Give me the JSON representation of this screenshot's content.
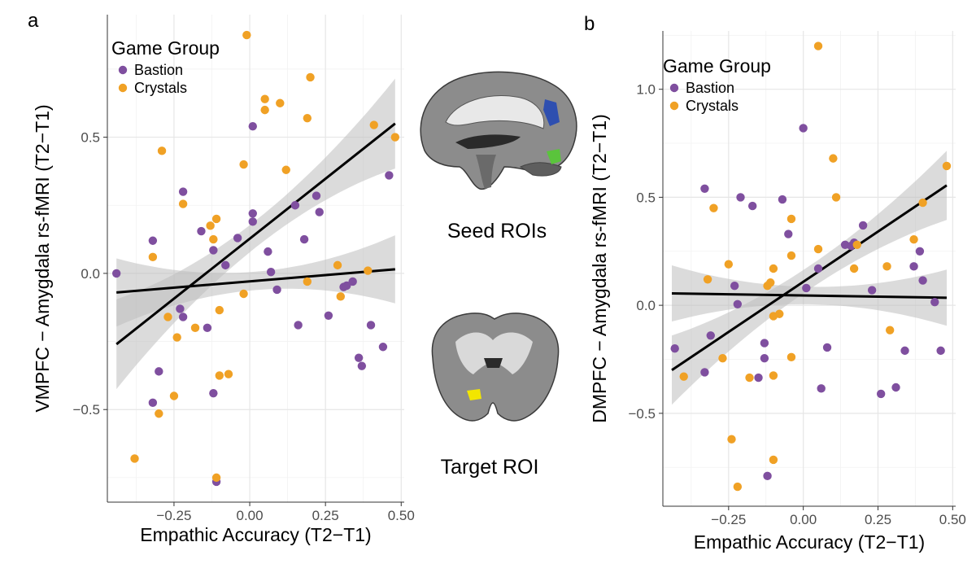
{
  "panels": [
    {
      "letter": "a",
      "chart_data": {
        "type": "scatter",
        "xlabel": "Empathic Accuracy (T2−T1)",
        "ylabel": "VMPFC − Amygdala rs-fMRI (T2−T1)",
        "xlim": [
          -0.47,
          0.51
        ],
        "ylim": [
          -0.84,
          0.95
        ],
        "xticks": [
          -0.25,
          0.0,
          0.25,
          0.5
        ],
        "xtick_labels": [
          "−0.25",
          "0.00",
          "0.25",
          "0.50"
        ],
        "yticks": [
          -0.5,
          0.0,
          0.5
        ],
        "ytick_labels": [
          "−0.5",
          "0.0",
          "0.5"
        ],
        "grid": true,
        "legend": {
          "title": "Game Group",
          "position": "top-left"
        },
        "series": [
          {
            "name": "Bastion",
            "color": "#7F4F9F",
            "points": [
              [
                -0.44,
                0.0
              ],
              [
                -0.32,
                0.12
              ],
              [
                -0.32,
                -0.475
              ],
              [
                -0.3,
                -0.36
              ],
              [
                -0.22,
                0.3
              ],
              [
                -0.22,
                -0.16
              ],
              [
                -0.23,
                -0.13
              ],
              [
                -0.16,
                0.155
              ],
              [
                -0.14,
                -0.2
              ],
              [
                -0.12,
                0.085
              ],
              [
                -0.12,
                -0.44
              ],
              [
                -0.11,
                -0.765
              ],
              [
                -0.08,
                0.03
              ],
              [
                -0.04,
                0.13
              ],
              [
                0.01,
                0.22
              ],
              [
                0.01,
                0.19
              ],
              [
                0.01,
                0.54
              ],
              [
                0.06,
                0.08
              ],
              [
                0.07,
                0.005
              ],
              [
                0.09,
                -0.06
              ],
              [
                0.15,
                0.25
              ],
              [
                0.16,
                -0.19
              ],
              [
                0.18,
                0.125
              ],
              [
                0.22,
                0.285
              ],
              [
                0.23,
                0.225
              ],
              [
                0.26,
                -0.155
              ],
              [
                0.31,
                -0.05
              ],
              [
                0.32,
                -0.045
              ],
              [
                0.34,
                -0.03
              ],
              [
                0.36,
                -0.31
              ],
              [
                0.37,
                -0.34
              ],
              [
                0.4,
                -0.19
              ],
              [
                0.44,
                -0.27
              ],
              [
                0.46,
                0.36
              ]
            ]
          },
          {
            "name": "Crystals",
            "color": "#F0A125",
            "points": [
              [
                -0.38,
                -0.68
              ],
              [
                -0.32,
                0.06
              ],
              [
                -0.3,
                -0.515
              ],
              [
                -0.29,
                0.45
              ],
              [
                -0.27,
                -0.16
              ],
              [
                -0.25,
                -0.45
              ],
              [
                -0.24,
                -0.235
              ],
              [
                -0.22,
                0.255
              ],
              [
                -0.18,
                -0.2
              ],
              [
                -0.13,
                0.175
              ],
              [
                -0.12,
                0.125
              ],
              [
                -0.11,
                0.2
              ],
              [
                -0.11,
                -0.75
              ],
              [
                -0.1,
                -0.135
              ],
              [
                -0.1,
                -0.375
              ],
              [
                -0.07,
                -0.37
              ],
              [
                -0.02,
                0.4
              ],
              [
                -0.02,
                -0.075
              ],
              [
                -0.01,
                0.875
              ],
              [
                0.05,
                0.6
              ],
              [
                0.05,
                0.64
              ],
              [
                0.1,
                0.625
              ],
              [
                0.12,
                0.38
              ],
              [
                0.19,
                0.57
              ],
              [
                0.2,
                0.72
              ],
              [
                0.19,
                -0.03
              ],
              [
                0.29,
                0.03
              ],
              [
                0.3,
                -0.085
              ],
              [
                0.39,
                0.01
              ],
              [
                0.41,
                0.545
              ],
              [
                0.48,
                0.5
              ]
            ]
          }
        ],
        "fits": [
          {
            "series": "Bastion",
            "x": [
              -0.44,
              0.48
            ],
            "y": [
              -0.07,
              0.015
            ],
            "band": [
              0.075,
              0.125
            ]
          },
          {
            "series": "Crystals",
            "x": [
              -0.44,
              0.48
            ],
            "y": [
              -0.26,
              0.55
            ],
            "band": [
              0.11,
              0.165
            ]
          }
        ]
      }
    },
    {
      "letter": "b",
      "chart_data": {
        "type": "scatter",
        "xlabel": "Empathic Accuracy (T2−T1)",
        "ylabel": "DMPFC − Amygdala rs-fMRI (T2−T1)",
        "xlim": [
          -0.47,
          0.51
        ],
        "ylim": [
          -0.93,
          1.27
        ],
        "xticks": [
          -0.25,
          0.0,
          0.25,
          0.5
        ],
        "xtick_labels": [
          "−0.25",
          "0.00",
          "0.25",
          "0.50"
        ],
        "yticks": [
          -0.5,
          0.0,
          0.5,
          1.0
        ],
        "ytick_labels": [
          "−0.5",
          "0.0",
          "0.5",
          "1.0"
        ],
        "grid": true,
        "legend": {
          "title": "Game Group",
          "position": "top-left"
        },
        "series": [
          {
            "name": "Bastion",
            "color": "#7F4F9F",
            "points": [
              [
                -0.43,
                -0.2
              ],
              [
                -0.33,
                0.54
              ],
              [
                -0.33,
                -0.31
              ],
              [
                -0.31,
                -0.14
              ],
              [
                -0.23,
                0.09
              ],
              [
                -0.22,
                0.005
              ],
              [
                -0.21,
                0.5
              ],
              [
                -0.17,
                0.46
              ],
              [
                -0.15,
                -0.335
              ],
              [
                -0.13,
                -0.175
              ],
              [
                -0.13,
                -0.245
              ],
              [
                -0.12,
                -0.79
              ],
              [
                -0.07,
                0.49
              ],
              [
                -0.05,
                0.33
              ],
              [
                0.0,
                0.82
              ],
              [
                0.01,
                0.08
              ],
              [
                0.05,
                0.17
              ],
              [
                0.06,
                -0.385
              ],
              [
                0.08,
                -0.195
              ],
              [
                0.14,
                0.28
              ],
              [
                0.16,
                0.275
              ],
              [
                0.17,
                0.29
              ],
              [
                0.2,
                0.37
              ],
              [
                0.23,
                0.07
              ],
              [
                0.26,
                -0.41
              ],
              [
                0.31,
                -0.38
              ],
              [
                0.34,
                -0.21
              ],
              [
                0.37,
                0.18
              ],
              [
                0.39,
                0.25
              ],
              [
                0.4,
                0.115
              ],
              [
                0.44,
                0.015
              ],
              [
                0.46,
                -0.21
              ]
            ]
          },
          {
            "name": "Crystals",
            "color": "#F0A125",
            "points": [
              [
                -0.4,
                -0.33
              ],
              [
                -0.32,
                0.12
              ],
              [
                -0.3,
                0.45
              ],
              [
                -0.27,
                -0.245
              ],
              [
                -0.25,
                0.19
              ],
              [
                -0.24,
                -0.62
              ],
              [
                -0.22,
                -0.84
              ],
              [
                -0.18,
                -0.335
              ],
              [
                -0.12,
                0.09
              ],
              [
                -0.11,
                0.105
              ],
              [
                -0.1,
                -0.05
              ],
              [
                -0.1,
                -0.325
              ],
              [
                -0.1,
                0.17
              ],
              [
                -0.1,
                -0.715
              ],
              [
                -0.08,
                -0.04
              ],
              [
                -0.04,
                0.4
              ],
              [
                -0.04,
                0.23
              ],
              [
                -0.04,
                -0.24
              ],
              [
                0.05,
                0.26
              ],
              [
                0.05,
                1.2
              ],
              [
                0.1,
                0.68
              ],
              [
                0.11,
                0.5
              ],
              [
                0.17,
                0.17
              ],
              [
                0.18,
                0.28
              ],
              [
                0.28,
                0.18
              ],
              [
                0.29,
                -0.115
              ],
              [
                0.37,
                0.305
              ],
              [
                0.4,
                0.475
              ],
              [
                0.48,
                0.645
              ]
            ]
          }
        ],
        "fits": [
          {
            "series": "Bastion",
            "x": [
              -0.44,
              0.48
            ],
            "y": [
              0.055,
              0.035
            ],
            "band": [
              0.09,
              0.13
            ]
          },
          {
            "series": "Crystals",
            "x": [
              -0.44,
              0.48
            ],
            "y": [
              -0.3,
              0.555
            ],
            "band": [
              0.12,
              0.16
            ]
          }
        ]
      }
    }
  ],
  "brain": {
    "seed_caption": "Seed ROIs",
    "target_caption": "Target ROI"
  },
  "colors": {
    "bastion": "#7F4F9F",
    "crystals": "#F0A125",
    "band": "#BEBEBE",
    "seed_blue": "#2E4FB0",
    "seed_green": "#5AC43C",
    "target_yellow": "#F2E600"
  }
}
